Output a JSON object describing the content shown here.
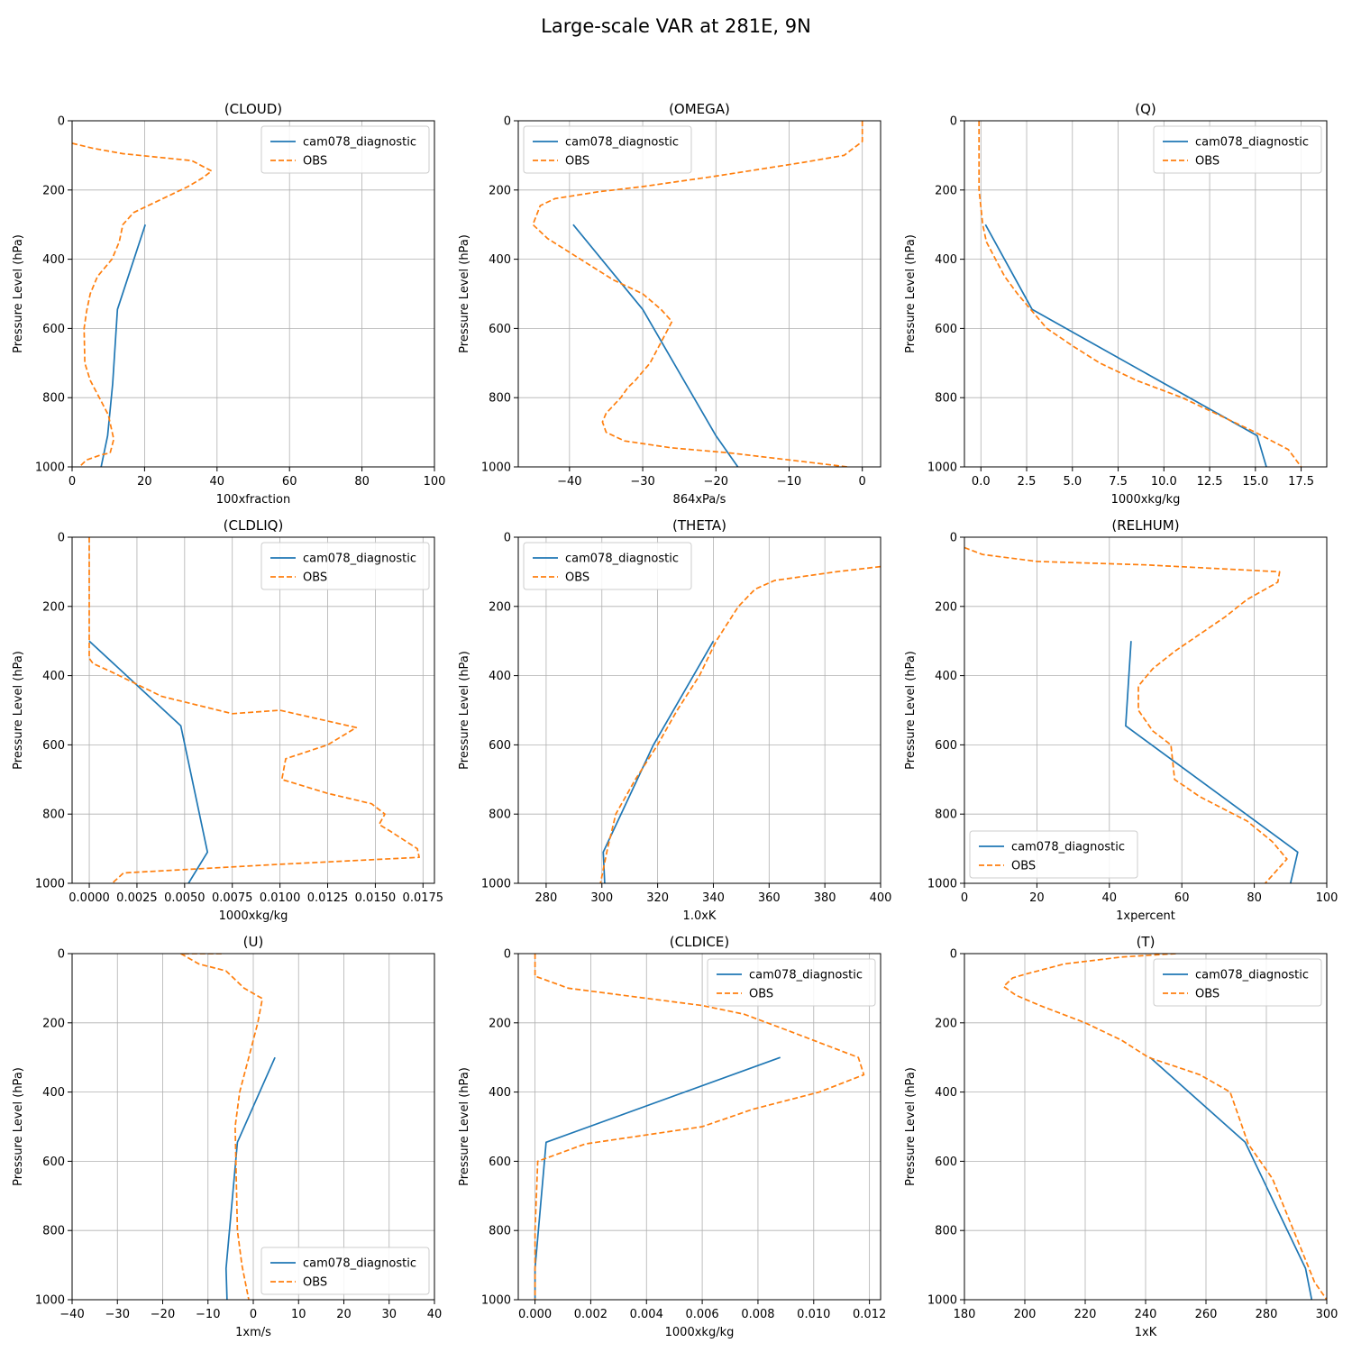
{
  "figure": {
    "title": "Large-scale VAR at 281E, 9N"
  },
  "colors": {
    "model": "#1f77b4",
    "obs": "#ff7f0e",
    "grid": "#b0b0b0"
  },
  "chart_data": [
    {
      "type": "line",
      "title": "(CLOUD)",
      "xlabel": "100xfraction",
      "ylabel": "Pressure Level (hPa)",
      "xlim": [
        0,
        100
      ],
      "ylim": [
        1000,
        0
      ],
      "xticks": [
        0,
        20,
        40,
        60,
        80,
        100
      ],
      "xtick_labels": [
        "0",
        "20",
        "40",
        "60",
        "80",
        "100"
      ],
      "yticks": [
        0,
        200,
        400,
        600,
        800,
        1000
      ],
      "ytick_labels": [
        "0",
        "200",
        "400",
        "600",
        "800",
        "1000"
      ],
      "grid": true,
      "legend_position": "upper right",
      "series": [
        {
          "name": "cam078_diagnostic",
          "style": "solid",
          "x": [
            20.2,
            12.5,
            11.2,
            9.8,
            8.0
          ],
          "y": [
            300,
            545,
            760,
            910,
            1000
          ]
        },
        {
          "name": "OBS",
          "style": "dashed",
          "x": [
            0,
            6,
            14,
            33,
            38.5,
            36,
            32,
            27,
            22,
            17,
            14,
            13,
            11,
            7,
            5,
            4,
            3.3,
            3.5,
            5,
            7.5,
            10,
            11.5,
            10.5,
            8,
            4,
            2
          ],
          "y": [
            65,
            80,
            95,
            115,
            145,
            165,
            190,
            215,
            240,
            265,
            300,
            350,
            400,
            450,
            500,
            550,
            600,
            700,
            750,
            800,
            850,
            920,
            960,
            965,
            980,
            1000
          ]
        }
      ]
    },
    {
      "type": "line",
      "title": "(OMEGA)",
      "xlabel": "864xPa/s",
      "ylabel": "Pressure Level (hPa)",
      "xlim": [
        -47,
        2.5
      ],
      "ylim": [
        1000,
        0
      ],
      "xticks": [
        -40,
        -30,
        -20,
        -10,
        0
      ],
      "xtick_labels": [
        "−40",
        "−30",
        "−20",
        "−10",
        "0"
      ],
      "yticks": [
        0,
        200,
        400,
        600,
        800,
        1000
      ],
      "ytick_labels": [
        "0",
        "200",
        "400",
        "600",
        "800",
        "1000"
      ],
      "grid": true,
      "legend_position": "upper left",
      "series": [
        {
          "name": "cam078_diagnostic",
          "style": "solid",
          "x": [
            -39.5,
            -30,
            -20,
            -17
          ],
          "y": [
            300,
            545,
            910,
            1000
          ]
        },
        {
          "name": "OBS",
          "style": "dashed",
          "x": [
            0,
            0,
            0,
            -2.5,
            -8,
            -20,
            -30,
            -36,
            -42,
            -44,
            -45,
            -43,
            -40,
            -37,
            -34,
            -30,
            -27.5,
            -26,
            -26.5,
            -29,
            -31,
            -32,
            -33,
            -35,
            -35.5,
            -35,
            -32.5,
            -26,
            -18,
            -8,
            -2
          ],
          "y": [
            0,
            20,
            60,
            100,
            120,
            160,
            190,
            205,
            225,
            245,
            300,
            340,
            380,
            420,
            460,
            500,
            545,
            580,
            600,
            700,
            750,
            770,
            800,
            845,
            870,
            900,
            925,
            945,
            960,
            985,
            1000
          ]
        }
      ]
    },
    {
      "type": "line",
      "title": "(Q)",
      "xlabel": "1000xkg/kg",
      "ylabel": "Pressure Level (hPa)",
      "xlim": [
        -0.9,
        18.9
      ],
      "ylim": [
        1000,
        0
      ],
      "xticks": [
        0,
        2.5,
        5,
        7.5,
        10,
        12.5,
        15,
        17.5
      ],
      "xtick_labels": [
        "0.0",
        "2.5",
        "5.0",
        "7.5",
        "10.0",
        "12.5",
        "15.0",
        "17.5"
      ],
      "yticks": [
        0,
        200,
        400,
        600,
        800,
        1000
      ],
      "ytick_labels": [
        "0",
        "200",
        "400",
        "600",
        "800",
        "1000"
      ],
      "grid": true,
      "legend_position": "upper right",
      "series": [
        {
          "name": "cam078_diagnostic",
          "style": "solid",
          "x": [
            0.25,
            2.8,
            15.1,
            15.6
          ],
          "y": [
            300,
            545,
            910,
            1000
          ]
        },
        {
          "name": "OBS",
          "style": "dashed",
          "x": [
            -0.1,
            -0.1,
            -0.1,
            0,
            0.1,
            0.3,
            0.8,
            1.3,
            2.0,
            2.8,
            3.6,
            5.0,
            6.5,
            8.5,
            11.0,
            13.0,
            15.0,
            16.8,
            17.5
          ],
          "y": [
            0,
            100,
            200,
            250,
            300,
            350,
            400,
            450,
            500,
            550,
            600,
            650,
            700,
            750,
            800,
            850,
            900,
            950,
            1000
          ]
        }
      ]
    },
    {
      "type": "line",
      "title": "(CLDLIQ)",
      "xlabel": "1000xkg/kg",
      "ylabel": "Pressure Level (hPa)",
      "xlim": [
        -0.0009,
        0.0181
      ],
      "ylim": [
        1000,
        0
      ],
      "xticks": [
        0,
        0.0025,
        0.005,
        0.0075,
        0.01,
        0.0125,
        0.015,
        0.0175
      ],
      "xtick_labels": [
        "0.0000",
        "0.0025",
        "0.0050",
        "0.0075",
        "0.0100",
        "0.0125",
        "0.0150",
        "0.0175"
      ],
      "yticks": [
        0,
        200,
        400,
        600,
        800,
        1000
      ],
      "ytick_labels": [
        "0",
        "200",
        "400",
        "600",
        "800",
        "1000"
      ],
      "grid": true,
      "legend_position": "upper right",
      "series": [
        {
          "name": "cam078_diagnostic",
          "style": "solid",
          "x": [
            0,
            0.0048,
            0.0062,
            0.0052
          ],
          "y": [
            300,
            545,
            910,
            1000
          ]
        },
        {
          "name": "OBS",
          "style": "dashed",
          "x": [
            0,
            0,
            0,
            0.0002,
            0.0012,
            0.0038,
            0.0075,
            0.01,
            0.014,
            0.0125,
            0.0103,
            0.0101,
            0.0125,
            0.0148,
            0.0155,
            0.0152,
            0.0158,
            0.0172,
            0.0173,
            0.01,
            0.0018,
            0.0012
          ],
          "y": [
            0,
            200,
            350,
            365,
            390,
            460,
            510,
            500,
            550,
            600,
            640,
            700,
            740,
            770,
            800,
            830,
            850,
            900,
            925,
            945,
            970,
            1000
          ]
        }
      ]
    },
    {
      "type": "line",
      "title": "(THETA)",
      "xlabel": "1.0xK",
      "ylabel": "Pressure Level (hPa)",
      "xlim": [
        270,
        400
      ],
      "ylim": [
        1000,
        0
      ],
      "xticks": [
        280,
        300,
        320,
        340,
        360,
        380,
        400
      ],
      "xtick_labels": [
        "280",
        "300",
        "320",
        "340",
        "360",
        "380",
        "400"
      ],
      "yticks": [
        0,
        200,
        400,
        600,
        800,
        1000
      ],
      "ytick_labels": [
        "0",
        "200",
        "400",
        "600",
        "800",
        "1000"
      ],
      "grid": true,
      "legend_position": "upper left",
      "series": [
        {
          "name": "cam078_diagnostic",
          "style": "solid",
          "x": [
            340,
            318.5,
            300.5,
            301
          ],
          "y": [
            300,
            600,
            910,
            1000
          ]
        },
        {
          "name": "OBS",
          "style": "dashed",
          "x": [
            400,
            384,
            362,
            355,
            349,
            345,
            341,
            335,
            327,
            320,
            312,
            305,
            302,
            299.5
          ],
          "y": [
            85,
            100,
            125,
            150,
            200,
            250,
            300,
            400,
            500,
            600,
            700,
            800,
            900,
            1000
          ]
        }
      ]
    },
    {
      "type": "line",
      "title": "(RELHUM)",
      "xlabel": "1xpercent",
      "ylabel": "Pressure Level (hPa)",
      "xlim": [
        0,
        100
      ],
      "ylim": [
        1000,
        0
      ],
      "xticks": [
        0,
        20,
        40,
        60,
        80,
        100
      ],
      "xtick_labels": [
        "0",
        "20",
        "40",
        "60",
        "80",
        "100"
      ],
      "yticks": [
        0,
        200,
        400,
        600,
        800,
        1000
      ],
      "ytick_labels": [
        "0",
        "200",
        "400",
        "600",
        "800",
        "1000"
      ],
      "grid": true,
      "legend_position": "lower left",
      "series": [
        {
          "name": "cam078_diagnostic",
          "style": "solid",
          "x": [
            46,
            44.5,
            92,
            90
          ],
          "y": [
            300,
            545,
            910,
            1000
          ]
        },
        {
          "name": "OBS",
          "style": "dashed",
          "x": [
            0,
            5,
            20,
            50,
            87,
            86.5,
            78,
            72,
            65,
            58,
            52,
            48,
            48,
            52,
            57,
            58,
            65,
            78,
            85,
            89,
            83
          ],
          "y": [
            30,
            50,
            70,
            80,
            100,
            130,
            180,
            230,
            280,
            330,
            380,
            430,
            500,
            560,
            600,
            700,
            750,
            820,
            880,
            930,
            1000
          ]
        }
      ]
    },
    {
      "type": "line",
      "title": "(U)",
      "xlabel": "1xm/s",
      "ylabel": "Pressure Level (hPa)",
      "xlim": [
        -40,
        40
      ],
      "ylim": [
        1000,
        0
      ],
      "xticks": [
        -40,
        -30,
        -20,
        -10,
        0,
        10,
        20,
        30,
        40
      ],
      "xtick_labels": [
        "−40",
        "−30",
        "−20",
        "−10",
        "0",
        "10",
        "20",
        "30",
        "40"
      ],
      "yticks": [
        0,
        200,
        400,
        600,
        800,
        1000
      ],
      "ytick_labels": [
        "0",
        "200",
        "400",
        "600",
        "800",
        "1000"
      ],
      "grid": true,
      "legend_position": "lower right",
      "series": [
        {
          "name": "cam078_diagnostic",
          "style": "solid",
          "x": [
            4.8,
            -3.5,
            -6,
            -5.8
          ],
          "y": [
            300,
            545,
            910,
            1000
          ]
        },
        {
          "name": "OBS",
          "style": "dashed",
          "x": [
            -7,
            -16,
            -12,
            -6,
            -2,
            2,
            1,
            -1,
            -3,
            -4,
            -3.5,
            -2.5,
            -1
          ],
          "y": [
            0,
            0,
            30,
            50,
            100,
            130,
            200,
            300,
            400,
            500,
            800,
            900,
            1000
          ]
        }
      ]
    },
    {
      "type": "line",
      "title": "(CLDICE)",
      "xlabel": "1000xkg/kg",
      "ylabel": "Pressure Level (hPa)",
      "xlim": [
        -0.0006,
        0.0124
      ],
      "ylim": [
        1000,
        0
      ],
      "xticks": [
        0,
        0.002,
        0.004,
        0.006,
        0.008,
        0.01,
        0.012
      ],
      "xtick_labels": [
        "0.000",
        "0.002",
        "0.004",
        "0.006",
        "0.008",
        "0.010",
        "0.012"
      ],
      "yticks": [
        0,
        200,
        400,
        600,
        800,
        1000
      ],
      "ytick_labels": [
        "0",
        "200",
        "400",
        "600",
        "800",
        "1000"
      ],
      "grid": true,
      "legend_position": "upper right",
      "series": [
        {
          "name": "cam078_diagnostic",
          "style": "solid",
          "x": [
            0.0088,
            0.0004,
            0,
            0
          ],
          "y": [
            300,
            545,
            910,
            1000
          ]
        },
        {
          "name": "OBS",
          "style": "dashed",
          "x": [
            0,
            0,
            0.0012,
            0.006,
            0.0075,
            0.009,
            0.0116,
            0.0118,
            0.0102,
            0.0078,
            0.006,
            0.0018,
            0.0001,
            0,
            0
          ],
          "y": [
            0,
            65,
            100,
            150,
            175,
            220,
            300,
            350,
            400,
            450,
            500,
            550,
            600,
            800,
            1000
          ]
        }
      ]
    },
    {
      "type": "line",
      "title": "(T)",
      "xlabel": "1xK",
      "ylabel": "Pressure Level (hPa)",
      "xlim": [
        180,
        300
      ],
      "ylim": [
        1000,
        0
      ],
      "xticks": [
        180,
        200,
        220,
        240,
        260,
        280,
        300
      ],
      "xtick_labels": [
        "180",
        "200",
        "220",
        "240",
        "260",
        "280",
        "300"
      ],
      "yticks": [
        0,
        200,
        400,
        600,
        800,
        1000
      ],
      "ytick_labels": [
        "0",
        "200",
        "400",
        "600",
        "800",
        "1000"
      ],
      "grid": true,
      "legend_position": "upper right",
      "series": [
        {
          "name": "cam078_diagnostic",
          "style": "solid",
          "x": [
            241.5,
            273,
            293,
            295
          ],
          "y": [
            300,
            545,
            910,
            1000
          ]
        },
        {
          "name": "OBS",
          "style": "dashed",
          "x": [
            250,
            232,
            213,
            200,
            196,
            193,
            197,
            205,
            220,
            232,
            241,
            258,
            268,
            274,
            282,
            289,
            296,
            300
          ],
          "y": [
            0,
            10,
            30,
            60,
            70,
            95,
            120,
            150,
            200,
            250,
            300,
            350,
            400,
            550,
            650,
            800,
            950,
            1000
          ]
        }
      ]
    }
  ]
}
